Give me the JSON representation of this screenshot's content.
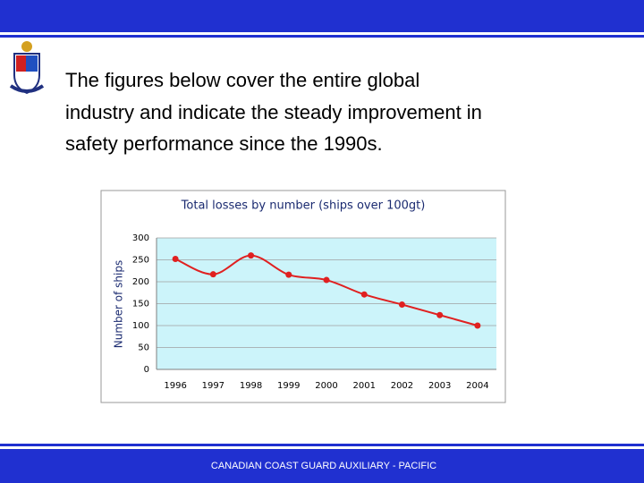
{
  "slide": {
    "body": [
      "The figures below cover the entire global",
      "industry and indicate the steady improvement in",
      "safety performance since the 1990s."
    ],
    "footer": "CANADIAN COAST GUARD AUXILIARY - PACIFIC"
  },
  "chart_data": {
    "type": "line",
    "title": "Total losses by number (ships over 100gt)",
    "y_label": "Number of ships",
    "categories": [
      "1996",
      "1997",
      "1998",
      "1999",
      "2000",
      "2001",
      "2002",
      "2003",
      "2004"
    ],
    "values": [
      252,
      217,
      260,
      216,
      204,
      171,
      148,
      124,
      100
    ],
    "color": "#e02020",
    "ylim": [
      0,
      300
    ],
    "yticks": [
      0,
      50,
      100,
      150,
      200,
      250,
      300
    ],
    "grid": true
  }
}
